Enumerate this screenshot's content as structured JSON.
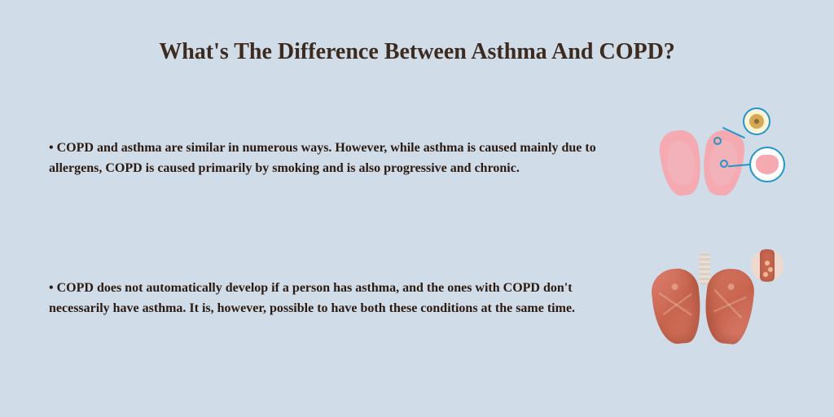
{
  "title": "What's The Difference Between Asthma And COPD?",
  "title_fontsize": 28,
  "title_color": "#3d2b1f",
  "background_color": "#d0dce8",
  "body_color": "#2b1a10",
  "body_fontsize": 16,
  "accent_blue": "#2196c9",
  "bullets": [
    {
      "text": "COPD and asthma are similar in numerous ways. However, while asthma is caused mainly due to allergens, COPD is caused primarily by smoking and is also progressive and chronic.",
      "illustration": "healthy-lungs",
      "lung_fill": "#f5a9b0",
      "callout_border": "#2196c9"
    },
    {
      "text": "COPD does not automatically develop if a person has asthma, and the ones with COPD don't necessarily have asthma. It is, however, possible to have both these conditions at the same time.",
      "illustration": "diseased-lungs",
      "lung_fill_dark": "#c7654f",
      "lung_fill_light": "#e08070",
      "trachea_color": "#d9cfc5"
    }
  ]
}
